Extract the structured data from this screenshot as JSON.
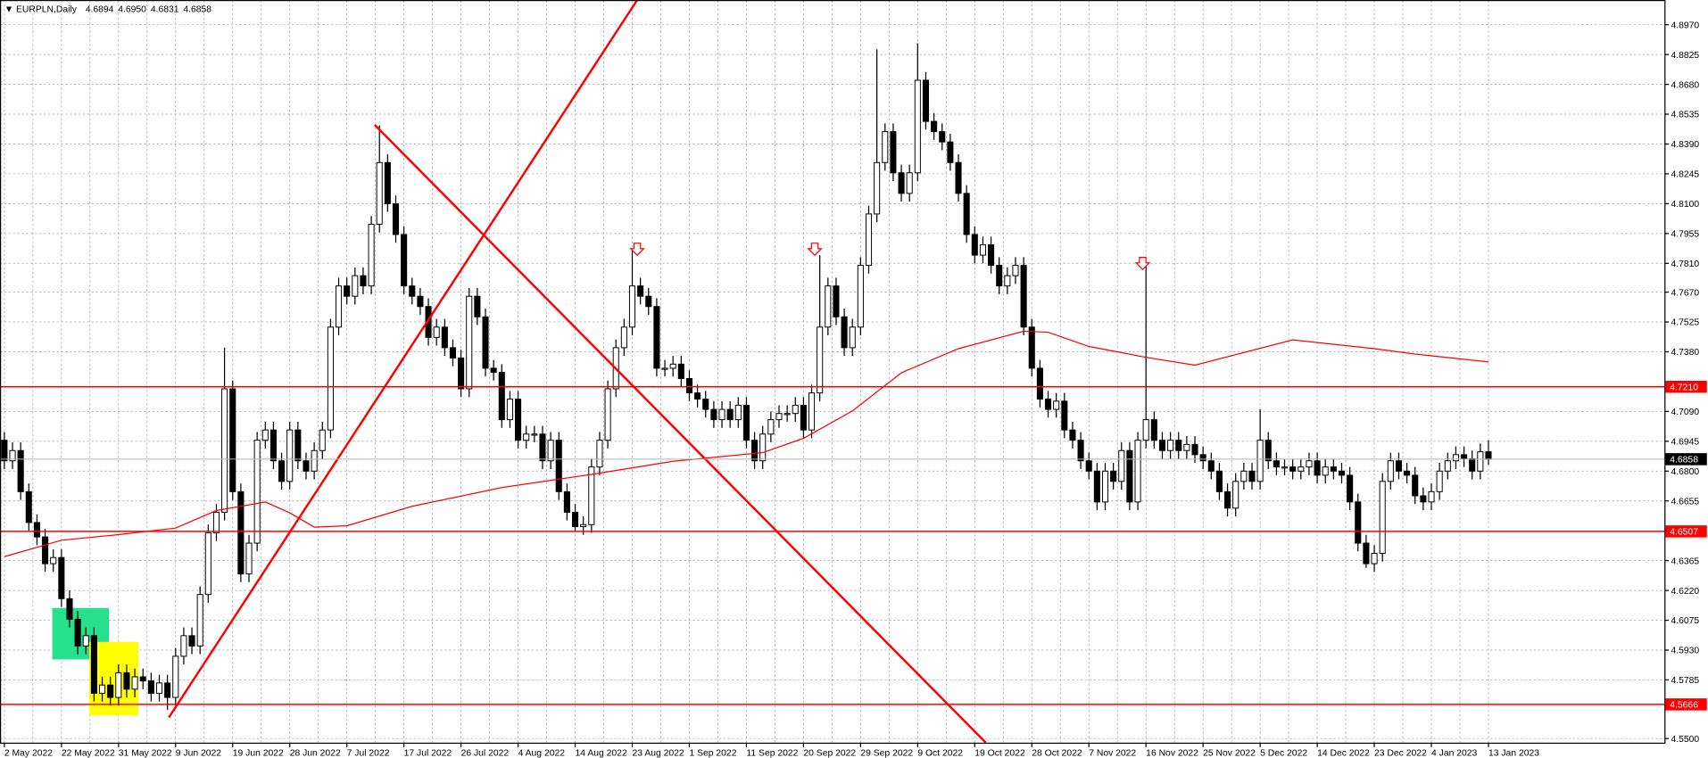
{
  "chart_data": {
    "type": "candlestick",
    "title": "EURPLN,Daily",
    "last_bar": [
      4.6894,
      {
        "value": 4.695,
        "label": "4.6950"
      },
      4.6831,
      4.6858
    ],
    "categories": [
      "2 May 2022",
      null,
      null,
      null,
      null,
      null,
      null,
      "22 May 2022",
      null,
      null,
      null,
      null,
      null,
      null,
      "31 May 2022",
      null,
      null,
      null,
      null,
      null,
      null,
      "9 Jun 2022",
      null,
      null,
      null,
      null,
      null,
      null,
      "19 Jun 2022",
      null,
      null,
      null,
      null,
      null,
      null,
      "28 Jun 2022",
      null,
      null,
      null,
      null,
      null,
      null,
      "7 Jul 2022",
      null,
      null,
      null,
      null,
      null,
      null,
      "17 Jul 2022",
      null,
      null,
      null,
      null,
      null,
      null,
      "26 Jul 2022",
      null,
      null,
      null,
      null,
      null,
      null,
      "4 Aug 2022",
      null,
      null,
      null,
      null,
      null,
      null,
      "14 Aug 2022",
      null,
      null,
      null,
      null,
      null,
      null,
      "23 Aug 2022",
      null,
      null,
      null,
      null,
      null,
      null,
      "1 Sep 2022",
      null,
      null,
      null,
      null,
      null,
      null,
      "11 Sep 2022",
      null,
      null,
      null,
      null,
      null,
      null,
      "20 Sep 2022",
      null,
      null,
      null,
      null,
      null,
      null,
      "29 Sep 2022",
      null,
      null,
      null,
      null,
      null,
      null,
      "9 Oct 2022",
      null,
      null,
      null,
      null,
      null,
      null,
      "19 Oct 2022",
      null,
      null,
      null,
      null,
      null,
      null,
      "28 Oct 2022",
      null,
      null,
      null,
      null,
      null,
      null,
      "7 Nov 2022",
      null,
      null,
      null,
      null,
      null,
      null,
      "16 Nov 2022",
      null,
      null,
      null,
      null,
      null,
      null,
      "25 Nov 2022",
      null,
      null,
      null,
      null,
      null,
      null,
      "5 Dec 2022",
      null,
      null,
      null,
      null,
      null,
      null,
      "14 Dec 2022",
      null,
      null,
      null,
      null,
      null,
      null,
      "23 Dec 2022",
      null,
      null,
      null,
      null,
      null,
      null,
      "4 Jan 2023",
      null,
      null,
      null,
      null,
      null,
      null,
      "13 Jan 2023"
    ],
    "open": [
      4.695,
      4.685,
      4.69,
      4.67,
      4.655,
      4.648,
      4.635,
      4.638,
      4.618,
      4.608,
      4.595,
      4.6,
      4.572,
      4.576,
      4.57,
      4.582,
      4.574,
      4.58,
      4.578,
      4.572,
      4.577,
      4.57,
      4.59,
      4.6,
      4.595,
      4.62,
      4.65,
      4.66,
      4.72,
      4.67,
      4.63,
      4.645,
      4.695,
      4.7,
      4.685,
      4.675,
      4.7,
      4.685,
      4.68,
      4.69,
      4.7,
      4.75,
      4.77,
      4.765,
      4.775,
      4.77,
      4.8,
      4.83,
      4.81,
      4.795,
      4.77,
      4.765,
      4.76,
      4.745,
      4.75,
      4.74,
      4.735,
      4.72,
      4.765,
      4.755,
      4.73,
      4.728,
      4.705,
      4.715,
      4.695,
      4.698,
      4.698,
      4.685,
      4.695,
      4.67,
      4.66,
      4.653,
      4.654,
      4.682,
      4.695,
      4.72,
      4.74,
      4.75,
      4.77,
      4.765,
      4.76,
      4.73,
      4.73,
      4.732,
      4.725,
      4.718,
      4.715,
      4.71,
      4.705,
      4.71,
      4.705,
      4.712,
      4.695,
      4.685,
      4.698,
      4.705,
      4.708,
      4.708,
      4.712,
      4.7,
      4.718,
      4.75,
      4.77,
      4.755,
      4.74,
      4.75,
      4.78,
      4.805,
      4.83,
      4.845,
      4.825,
      4.815,
      4.825,
      4.87,
      4.85,
      4.845,
      4.84,
      4.83,
      4.815,
      4.795,
      4.785,
      4.79,
      4.78,
      4.77,
      4.775,
      4.78,
      4.75,
      4.73,
      4.715,
      4.71,
      4.714,
      4.7,
      4.695,
      4.685,
      4.68,
      4.665,
      4.68,
      4.675,
      4.69,
      4.665,
      4.695,
      4.705,
      4.695,
      4.69,
      4.695,
      4.69,
      4.693,
      4.688,
      4.685,
      4.68,
      4.67,
      4.662,
      4.675,
      4.68,
      4.675,
      4.695,
      4.685,
      4.682,
      4.682,
      4.68,
      4.682,
      4.685,
      4.678,
      4.682,
      4.68,
      4.678,
      4.665,
      4.645,
      4.635,
      4.64,
      4.675,
      4.685,
      4.68,
      4.678,
      4.668,
      4.665,
      4.67,
      4.68,
      4.685,
      4.688,
      4.686,
      4.68,
      4.6894
    ],
    "high": [
      4.699,
      4.694,
      4.694,
      4.674,
      4.659,
      4.652,
      4.642,
      4.642,
      4.622,
      4.612,
      4.604,
      4.604,
      4.58,
      4.58,
      4.586,
      4.586,
      4.584,
      4.584,
      4.582,
      4.581,
      4.581,
      4.594,
      4.604,
      4.604,
      4.624,
      4.654,
      4.664,
      4.74,
      4.724,
      4.674,
      4.649,
      4.699,
      4.704,
      4.704,
      4.689,
      4.704,
      4.704,
      4.689,
      4.694,
      4.704,
      4.754,
      4.774,
      4.774,
      4.779,
      4.779,
      4.804,
      4.848,
      4.834,
      4.814,
      4.799,
      4.774,
      4.769,
      4.764,
      4.754,
      4.754,
      4.744,
      4.739,
      4.769,
      4.769,
      4.759,
      4.734,
      4.732,
      4.719,
      4.719,
      4.702,
      4.702,
      4.702,
      4.699,
      4.699,
      4.674,
      4.664,
      4.658,
      4.686,
      4.699,
      4.724,
      4.744,
      4.754,
      4.787,
      4.774,
      4.769,
      4.764,
      4.734,
      4.736,
      4.736,
      4.729,
      4.722,
      4.719,
      4.714,
      4.714,
      4.714,
      4.716,
      4.716,
      4.699,
      4.702,
      4.709,
      4.712,
      4.712,
      4.716,
      4.716,
      4.722,
      4.785,
      4.774,
      4.774,
      4.759,
      4.754,
      4.784,
      4.809,
      4.885,
      4.849,
      4.849,
      4.829,
      4.829,
      4.888,
      4.874,
      4.854,
      4.849,
      4.844,
      4.834,
      4.819,
      4.799,
      4.794,
      4.794,
      4.784,
      4.779,
      4.784,
      4.784,
      4.754,
      4.734,
      4.719,
      4.718,
      4.718,
      4.704,
      4.699,
      4.689,
      4.684,
      4.684,
      4.684,
      4.694,
      4.694,
      4.699,
      4.78,
      4.709,
      4.699,
      4.699,
      4.699,
      4.697,
      4.697,
      4.692,
      4.689,
      4.684,
      4.674,
      4.679,
      4.684,
      4.684,
      4.71,
      4.699,
      4.689,
      4.686,
      4.686,
      4.686,
      4.689,
      4.689,
      4.686,
      4.686,
      4.684,
      4.682,
      4.669,
      4.649,
      4.644,
      4.679,
      4.689,
      4.689,
      4.684,
      4.682,
      4.672,
      4.674,
      4.684,
      4.689,
      4.692,
      4.692,
      4.69,
      4.6934,
      4.695
    ],
    "low": [
      4.681,
      4.681,
      4.666,
      4.651,
      4.644,
      4.631,
      4.631,
      4.614,
      4.604,
      4.591,
      4.591,
      4.568,
      4.568,
      4.566,
      4.566,
      4.57,
      4.57,
      4.574,
      4.568,
      4.568,
      4.564,
      4.566,
      4.586,
      4.591,
      4.591,
      4.616,
      4.646,
      4.656,
      4.666,
      4.626,
      4.626,
      4.641,
      4.691,
      4.681,
      4.671,
      4.671,
      4.681,
      4.676,
      4.676,
      4.686,
      4.696,
      4.746,
      4.761,
      4.761,
      4.766,
      4.766,
      4.796,
      4.806,
      4.791,
      4.766,
      4.761,
      4.756,
      4.741,
      4.741,
      4.736,
      4.731,
      4.716,
      4.716,
      4.751,
      4.726,
      4.724,
      4.701,
      4.701,
      4.691,
      4.691,
      4.694,
      4.681,
      4.681,
      4.666,
      4.656,
      4.651,
      4.649,
      4.65,
      4.678,
      4.691,
      4.716,
      4.736,
      4.746,
      4.761,
      4.756,
      4.726,
      4.726,
      4.726,
      4.721,
      4.714,
      4.711,
      4.706,
      4.701,
      4.701,
      4.701,
      4.701,
      4.691,
      4.681,
      4.681,
      4.694,
      4.701,
      4.704,
      4.704,
      4.696,
      4.696,
      4.714,
      4.746,
      4.751,
      4.736,
      4.736,
      4.746,
      4.776,
      4.801,
      4.826,
      4.821,
      4.811,
      4.811,
      4.821,
      4.846,
      4.841,
      4.836,
      4.826,
      4.811,
      4.791,
      4.781,
      4.781,
      4.776,
      4.766,
      4.766,
      4.771,
      4.746,
      4.726,
      4.711,
      4.706,
      4.706,
      4.696,
      4.691,
      4.681,
      4.676,
      4.661,
      4.661,
      4.671,
      4.671,
      4.661,
      4.661,
      4.691,
      4.691,
      4.686,
      4.686,
      4.686,
      4.686,
      4.684,
      4.681,
      4.676,
      4.666,
      4.658,
      4.658,
      4.671,
      4.671,
      4.671,
      4.681,
      4.678,
      4.678,
      4.676,
      4.676,
      4.678,
      4.674,
      4.674,
      4.676,
      4.674,
      4.661,
      4.641,
      4.633,
      4.631,
      4.636,
      4.671,
      4.676,
      4.674,
      4.664,
      4.661,
      4.661,
      4.666,
      4.676,
      4.681,
      4.682,
      4.676,
      4.676,
      4.6831
    ],
    "close": [
      4.685,
      4.69,
      4.67,
      4.655,
      4.648,
      4.635,
      4.638,
      4.618,
      4.608,
      4.595,
      4.6,
      4.572,
      4.576,
      4.57,
      4.582,
      4.574,
      4.58,
      4.578,
      4.572,
      4.577,
      4.57,
      4.59,
      4.6,
      4.595,
      4.62,
      4.65,
      4.66,
      4.72,
      4.67,
      4.63,
      4.645,
      4.695,
      4.7,
      4.685,
      4.675,
      4.7,
      4.685,
      4.68,
      4.69,
      4.7,
      4.75,
      4.77,
      4.765,
      4.775,
      4.77,
      4.8,
      4.83,
      4.81,
      4.795,
      4.77,
      4.765,
      4.76,
      4.745,
      4.75,
      4.74,
      4.735,
      4.72,
      4.765,
      4.755,
      4.73,
      4.728,
      4.705,
      4.715,
      4.695,
      4.698,
      4.698,
      4.685,
      4.695,
      4.67,
      4.66,
      4.653,
      4.654,
      4.682,
      4.695,
      4.72,
      4.74,
      4.75,
      4.77,
      4.765,
      4.76,
      4.73,
      4.73,
      4.732,
      4.725,
      4.718,
      4.715,
      4.71,
      4.705,
      4.71,
      4.705,
      4.712,
      4.695,
      4.685,
      4.698,
      4.705,
      4.708,
      4.708,
      4.712,
      4.7,
      4.718,
      4.75,
      4.77,
      4.755,
      4.74,
      4.75,
      4.78,
      4.805,
      4.83,
      4.845,
      4.825,
      4.815,
      4.825,
      4.87,
      4.85,
      4.845,
      4.84,
      4.83,
      4.815,
      4.795,
      4.785,
      4.79,
      4.78,
      4.77,
      4.775,
      4.78,
      4.75,
      4.73,
      4.715,
      4.71,
      4.714,
      4.7,
      4.695,
      4.685,
      4.68,
      4.665,
      4.68,
      4.675,
      4.69,
      4.665,
      4.695,
      4.705,
      4.695,
      4.69,
      4.695,
      4.69,
      4.693,
      4.688,
      4.685,
      4.68,
      4.67,
      4.662,
      4.675,
      4.68,
      4.675,
      4.695,
      4.685,
      4.682,
      4.682,
      4.68,
      4.682,
      4.685,
      4.678,
      4.682,
      4.68,
      4.678,
      4.665,
      4.645,
      4.635,
      4.64,
      4.675,
      4.685,
      4.68,
      4.678,
      4.668,
      4.665,
      4.67,
      4.68,
      4.685,
      4.688,
      4.686,
      4.68,
      4.6894,
      4.6858
    ],
    "up_color": "#ffffff",
    "down_color": "#000000",
    "ylim": [
      4.548,
      4.909
    ],
    "yticks": [
      {
        "value": 4.897,
        "label": "4.8970"
      },
      4.8825,
      {
        "value": 4.868,
        "label": "4.8680"
      },
      4.8535,
      {
        "value": 4.839,
        "label": "4.8390"
      },
      4.8245,
      {
        "value": 4.81,
        "label": "4.8100"
      },
      4.7955,
      {
        "value": 4.781,
        "label": "4.7810"
      },
      {
        "value": 4.767,
        "label": "4.7670"
      },
      4.7525,
      {
        "value": 4.738,
        "label": "4.7380"
      },
      {
        "value": 4.709,
        "label": "4.7090"
      },
      4.6945,
      {
        "value": 4.68,
        "label": "4.6800"
      },
      4.6655,
      4.6365,
      {
        "value": 4.622,
        "label": "4.6220"
      },
      4.6075,
      {
        "value": 4.593,
        "label": "4.5930"
      },
      4.5785,
      {
        "value": 4.55,
        "label": "4.5500"
      }
    ],
    "grid": true,
    "ma": {
      "color": "#ff0000",
      "x": [
        0,
        7,
        14,
        21,
        26,
        32,
        35,
        38,
        42,
        50,
        61,
        72,
        82,
        93,
        98,
        104,
        110,
        117,
        125,
        128,
        133,
        140,
        146,
        158,
        168,
        173,
        182
      ],
      "values": [
        4.6384,
        4.6464,
        4.6491,
        4.6523,
        4.6608,
        4.665,
        4.6597,
        4.6528,
        4.6534,
        4.6629,
        4.672,
        4.6784,
        4.6848,
        4.689,
        4.6959,
        4.7092,
        4.7278,
        4.7395,
        4.748,
        4.7475,
        4.7406,
        4.7353,
        4.7315,
        4.7438,
        4.7395,
        4.7369,
        4.7331
      ]
    },
    "levels": [
      {
        "value": 4.721,
        "label": "4.7210"
      },
      4.6507,
      4.5666
    ],
    "level_color": "#ff0000",
    "last_price": 4.6858
  }
}
